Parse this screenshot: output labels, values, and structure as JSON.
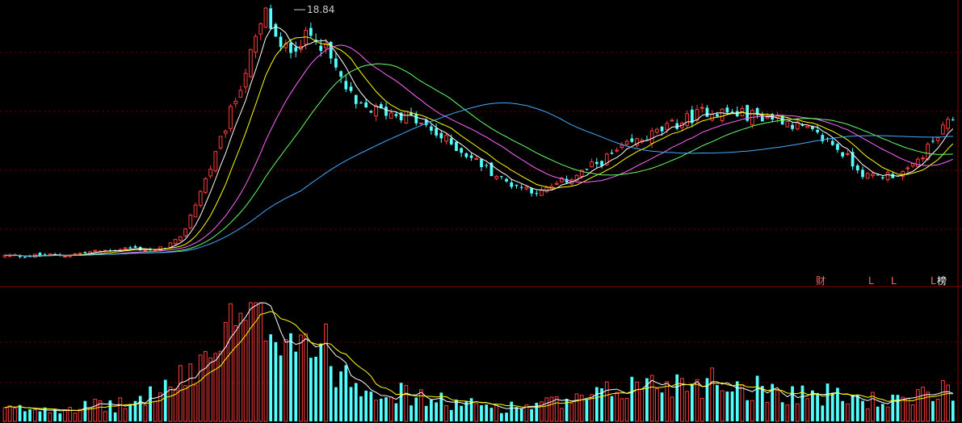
{
  "colors": {
    "background": "#000000",
    "up": "#ff3b3b",
    "down": "#54ffff",
    "grid": "#5a0000",
    "divider": "#8a0000",
    "ma5": "#ffffff",
    "ma10": "#ffff00",
    "ma20": "#ff66ff",
    "ma30": "#66ff66",
    "ma60": "#44aaff",
    "marker_text": "#ff6666",
    "peak_label": "#cccccc"
  },
  "chart_data": {
    "type": "candlestick",
    "panels": [
      "price",
      "volume"
    ],
    "peak_label": "18.84",
    "event_markers": [
      "财",
      "L",
      "L",
      "L",
      "榜"
    ],
    "price_min": 3.2,
    "price_max": 19.1,
    "volume_max": 100,
    "series_count": 190,
    "anchors_close": [
      [
        0,
        4.3
      ],
      [
        12,
        4.35
      ],
      [
        25,
        4.8
      ],
      [
        30,
        4.6
      ],
      [
        35,
        5.3
      ],
      [
        42,
        10.3
      ],
      [
        52,
        18.8
      ],
      [
        55,
        16.5
      ],
      [
        62,
        17.6
      ],
      [
        70,
        13.2
      ],
      [
        80,
        12.7
      ],
      [
        90,
        10.8
      ],
      [
        100,
        8.7
      ],
      [
        107,
        8.1
      ],
      [
        115,
        9.3
      ],
      [
        125,
        11.0
      ],
      [
        140,
        13.0
      ],
      [
        155,
        12.5
      ],
      [
        165,
        11.0
      ],
      [
        172,
        9.0
      ],
      [
        180,
        9.3
      ],
      [
        189,
        12.5
      ]
    ],
    "anchors_volume": [
      [
        0,
        10
      ],
      [
        12,
        12
      ],
      [
        25,
        14
      ],
      [
        30,
        25
      ],
      [
        35,
        33
      ],
      [
        42,
        63
      ],
      [
        50,
        90
      ],
      [
        55,
        85
      ],
      [
        60,
        72
      ],
      [
        70,
        35
      ],
      [
        80,
        22
      ],
      [
        90,
        15
      ],
      [
        100,
        12
      ],
      [
        115,
        17
      ],
      [
        125,
        30
      ],
      [
        140,
        35
      ],
      [
        155,
        25
      ],
      [
        165,
        22
      ],
      [
        172,
        18
      ],
      [
        180,
        16
      ],
      [
        189,
        30
      ]
    ],
    "moving_averages": [
      5,
      10,
      20,
      30,
      60
    ],
    "grid": true,
    "legend": "none"
  }
}
